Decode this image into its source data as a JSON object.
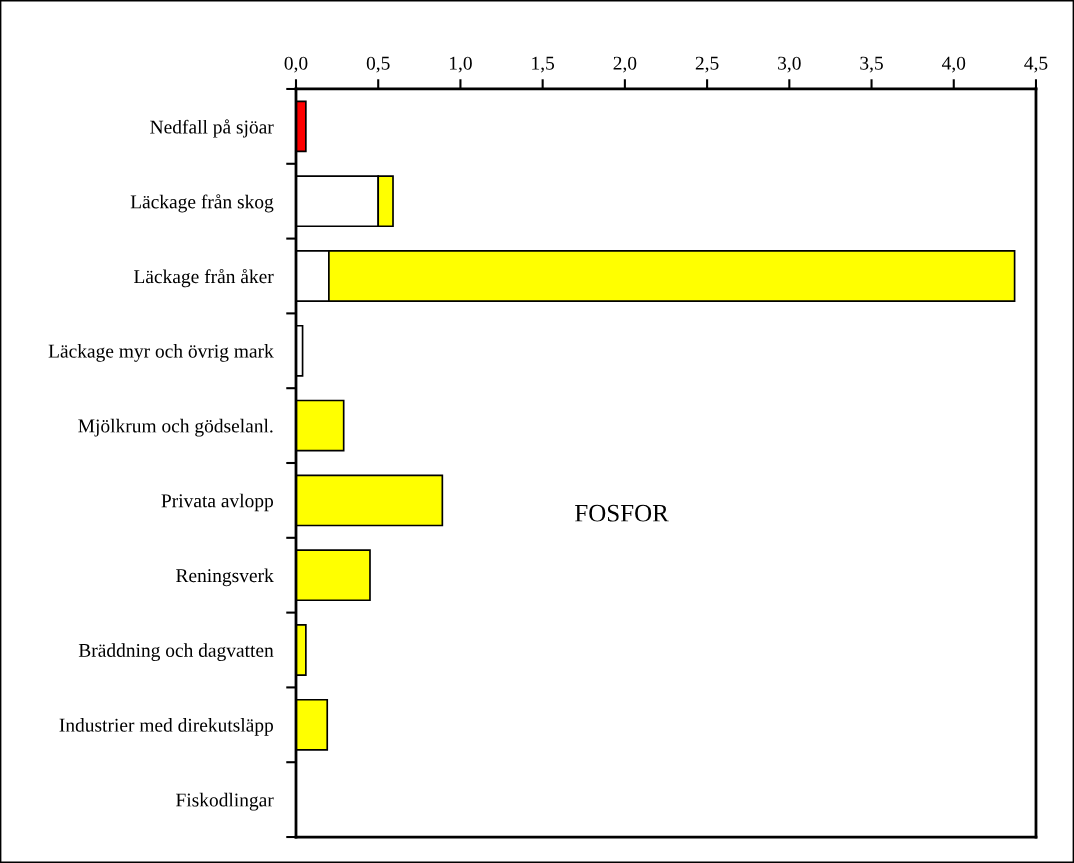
{
  "chart_data": {
    "type": "bar",
    "orientation": "horizontal",
    "stacked": true,
    "categories": [
      "Nedfall på sjöar",
      "Läckage från skog",
      "Läckage från åker",
      "Läckage myr och övrig mark",
      "Mjölkrum och gödselanl.",
      "Privata avlopp",
      "Reningsverk",
      "Bräddning och dagvatten",
      "Industrier med direkutsläpp",
      "Fiskodlingar"
    ],
    "series": [
      {
        "color": "#ff0000",
        "values": [
          0.06,
          null,
          null,
          null,
          null,
          null,
          null,
          null,
          null,
          null
        ]
      },
      {
        "color": "#ffffff",
        "values": [
          null,
          0.5,
          0.2,
          0.04,
          null,
          null,
          null,
          null,
          null,
          null
        ]
      },
      {
        "color": "#ffff00",
        "values": [
          null,
          0.09,
          4.17,
          null,
          0.29,
          0.89,
          0.45,
          0.06,
          0.19,
          0
        ]
      }
    ],
    "xlim": [
      0,
      4.5
    ],
    "xticks": [
      {
        "value": 0,
        "label": "0,0"
      },
      {
        "value": 0.5,
        "label": "0,5"
      },
      {
        "value": 1,
        "label": "1,0"
      },
      {
        "value": 1.5,
        "label": "1,5"
      },
      {
        "value": 2,
        "label": "2,0"
      },
      {
        "value": 2.5,
        "label": "2,5"
      },
      {
        "value": 3,
        "label": "3,0"
      },
      {
        "value": 3.5,
        "label": "3,5"
      },
      {
        "value": 4,
        "label": "4,0"
      },
      {
        "value": 4.5,
        "label": "4,5"
      }
    ],
    "annotations": [
      "FOSFOR"
    ],
    "grid": false,
    "legend": false
  }
}
